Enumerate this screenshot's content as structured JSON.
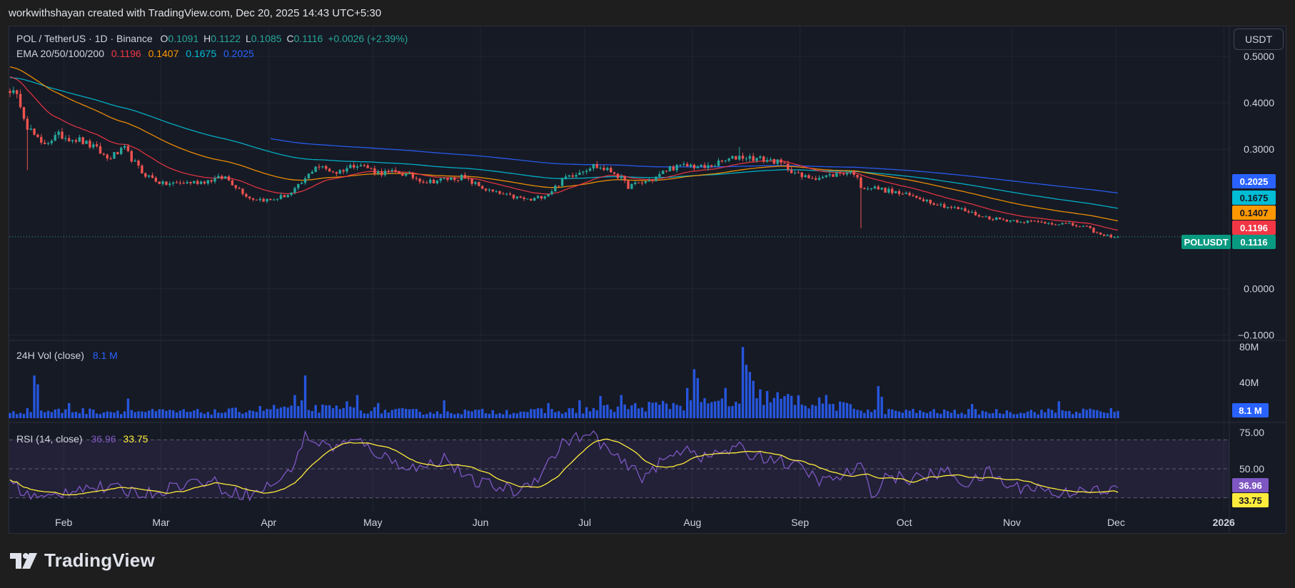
{
  "header": {
    "text": "workwithshayan created with TradingView.com, Dec 20, 2025 14:43 UTC+5:30"
  },
  "currency_button": "USDT",
  "brand": {
    "logo_text": "TradingView"
  },
  "legend": {
    "symbol": "POL / TetherUS · 1D · Binance",
    "o_label": "O",
    "o": "0.1091",
    "h_label": "H",
    "h": "0.1122",
    "l_label": "L",
    "l": "0.1085",
    "c_label": "C",
    "c": "0.1116",
    "change": "+0.0026 (+2.39%)",
    "ema_label": "EMA 20/50/100/200",
    "ema20": "0.1196",
    "ema50": "0.1407",
    "ema100": "0.1675",
    "ema200": "0.2025",
    "vol_label": "24H Vol (close)",
    "vol_value": "8.1 M",
    "rsi_label": "RSI (14, close)",
    "rsi_value": "36.96",
    "rsi_ma": "33.75"
  },
  "price_tags": {
    "ema200": "0.2025",
    "ema100": "0.1675",
    "ema50": "0.1407",
    "ema20": "0.1196",
    "symbol_tag": "POLUSDT",
    "last": "0.1116",
    "vol": "8.1 M",
    "rsi": "36.96",
    "rsi_ma": "33.75"
  },
  "colors": {
    "up": "#26a69a",
    "down": "#ef5350",
    "ema20": "#f23645",
    "ema50": "#ff9800",
    "ema100": "#00bcd4",
    "ema200": "#2962ff",
    "volume": "#2962ff",
    "rsi": "#7e57c2",
    "rsi_ma": "#ffeb3b"
  },
  "chart_data": {
    "type": "candlestick",
    "x_ticks": [
      "Feb",
      "Mar",
      "Apr",
      "May",
      "Jun",
      "Jul",
      "Aug",
      "Sep",
      "Oct",
      "Nov",
      "Dec",
      "2026"
    ],
    "price_axis": {
      "ticks": [
        "0.5000",
        "0.4000",
        "0.3000",
        "0.0000",
        "−0.1000"
      ],
      "tick_values": [
        0.5,
        0.4,
        0.3,
        0.0,
        -0.1
      ],
      "ylim": [
        -0.11,
        0.56
      ]
    },
    "volume_axis": {
      "ticks": [
        "80M",
        "40M"
      ],
      "tick_values": [
        80,
        40
      ],
      "ylim": [
        0,
        85
      ]
    },
    "rsi_axis": {
      "ticks": [
        "75.00",
        "50.00"
      ],
      "tick_values": [
        75,
        50
      ],
      "bands": [
        70,
        30
      ],
      "ylim": [
        20,
        80
      ]
    },
    "price_keypoints": [
      [
        0,
        0.43
      ],
      [
        3,
        0.4
      ],
      [
        5,
        0.35
      ],
      [
        9,
        0.31
      ],
      [
        14,
        0.33
      ],
      [
        20,
        0.32
      ],
      [
        25,
        0.3
      ],
      [
        28,
        0.28
      ],
      [
        33,
        0.3
      ],
      [
        38,
        0.25
      ],
      [
        44,
        0.225
      ],
      [
        55,
        0.23
      ],
      [
        62,
        0.24
      ],
      [
        69,
        0.195
      ],
      [
        75,
        0.19
      ],
      [
        81,
        0.205
      ],
      [
        85,
        0.235
      ],
      [
        88,
        0.265
      ],
      [
        94,
        0.25
      ],
      [
        100,
        0.27
      ],
      [
        106,
        0.25
      ],
      [
        112,
        0.25
      ],
      [
        120,
        0.23
      ],
      [
        130,
        0.24
      ],
      [
        138,
        0.21
      ],
      [
        143,
        0.2
      ],
      [
        150,
        0.19
      ],
      [
        155,
        0.205
      ],
      [
        160,
        0.24
      ],
      [
        168,
        0.265
      ],
      [
        174,
        0.25
      ],
      [
        178,
        0.22
      ],
      [
        185,
        0.235
      ],
      [
        190,
        0.26
      ],
      [
        196,
        0.265
      ],
      [
        200,
        0.26
      ],
      [
        204,
        0.27
      ],
      [
        210,
        0.285
      ],
      [
        215,
        0.28
      ],
      [
        220,
        0.275
      ],
      [
        223,
        0.265
      ],
      [
        228,
        0.24
      ],
      [
        234,
        0.24
      ],
      [
        240,
        0.25
      ],
      [
        243,
        0.25
      ],
      [
        245,
        0.22
      ],
      [
        250,
        0.215
      ],
      [
        256,
        0.205
      ],
      [
        262,
        0.195
      ],
      [
        268,
        0.18
      ],
      [
        274,
        0.17
      ],
      [
        280,
        0.155
      ],
      [
        286,
        0.148
      ],
      [
        292,
        0.145
      ],
      [
        298,
        0.142
      ],
      [
        304,
        0.139
      ],
      [
        310,
        0.132
      ],
      [
        314,
        0.115
      ],
      [
        319,
        0.1116
      ]
    ],
    "ema200_start": 0.3945,
    "volume_keypoints": [
      [
        0,
        8
      ],
      [
        20,
        8
      ],
      [
        60,
        7
      ],
      [
        80,
        12
      ],
      [
        120,
        7
      ],
      [
        160,
        8
      ],
      [
        190,
        15
      ],
      [
        210,
        16
      ],
      [
        215,
        25
      ],
      [
        250,
        8
      ],
      [
        270,
        7
      ],
      [
        319,
        8.1
      ]
    ],
    "volume_spikes": [
      [
        7,
        48
      ],
      [
        8,
        38
      ],
      [
        17,
        17
      ],
      [
        34,
        22
      ],
      [
        82,
        26
      ],
      [
        84,
        20
      ],
      [
        85,
        48
      ],
      [
        97,
        19
      ],
      [
        100,
        26
      ],
      [
        106,
        17
      ],
      [
        125,
        20
      ],
      [
        155,
        17
      ],
      [
        164,
        20
      ],
      [
        170,
        25
      ],
      [
        176,
        26
      ],
      [
        195,
        34
      ],
      [
        197,
        55
      ],
      [
        198,
        45
      ],
      [
        205,
        22
      ],
      [
        206,
        34
      ],
      [
        211,
        80
      ],
      [
        212,
        60
      ],
      [
        213,
        52
      ],
      [
        214,
        42
      ],
      [
        235,
        26
      ],
      [
        250,
        36
      ],
      [
        251,
        24
      ],
      [
        277,
        16
      ],
      [
        302,
        19
      ]
    ],
    "rsi_keypoints": [
      [
        0,
        42
      ],
      [
        5,
        32
      ],
      [
        10,
        29
      ],
      [
        20,
        38
      ],
      [
        30,
        36
      ],
      [
        40,
        33
      ],
      [
        50,
        40
      ],
      [
        58,
        42
      ],
      [
        62,
        35
      ],
      [
        70,
        32
      ],
      [
        80,
        46
      ],
      [
        85,
        72
      ],
      [
        92,
        65
      ],
      [
        100,
        69
      ],
      [
        110,
        55
      ],
      [
        118,
        50
      ],
      [
        125,
        58
      ],
      [
        132,
        42
      ],
      [
        140,
        38
      ],
      [
        146,
        34
      ],
      [
        152,
        45
      ],
      [
        160,
        70
      ],
      [
        168,
        73
      ],
      [
        175,
        56
      ],
      [
        182,
        45
      ],
      [
        190,
        58
      ],
      [
        195,
        66
      ],
      [
        200,
        57
      ],
      [
        205,
        62
      ],
      [
        210,
        64
      ],
      [
        213,
        60
      ],
      [
        220,
        57
      ],
      [
        228,
        50
      ],
      [
        234,
        41
      ],
      [
        240,
        45
      ],
      [
        245,
        52
      ],
      [
        248,
        31
      ],
      [
        252,
        45
      ],
      [
        260,
        43
      ],
      [
        270,
        48
      ],
      [
        276,
        39
      ],
      [
        282,
        48
      ],
      [
        288,
        37
      ],
      [
        295,
        38
      ],
      [
        302,
        32
      ],
      [
        310,
        38
      ],
      [
        315,
        32
      ],
      [
        319,
        37
      ]
    ],
    "rsi_ma_last": 33.75,
    "last_volume": "8.1 M",
    "last_rsi": 36.96
  }
}
